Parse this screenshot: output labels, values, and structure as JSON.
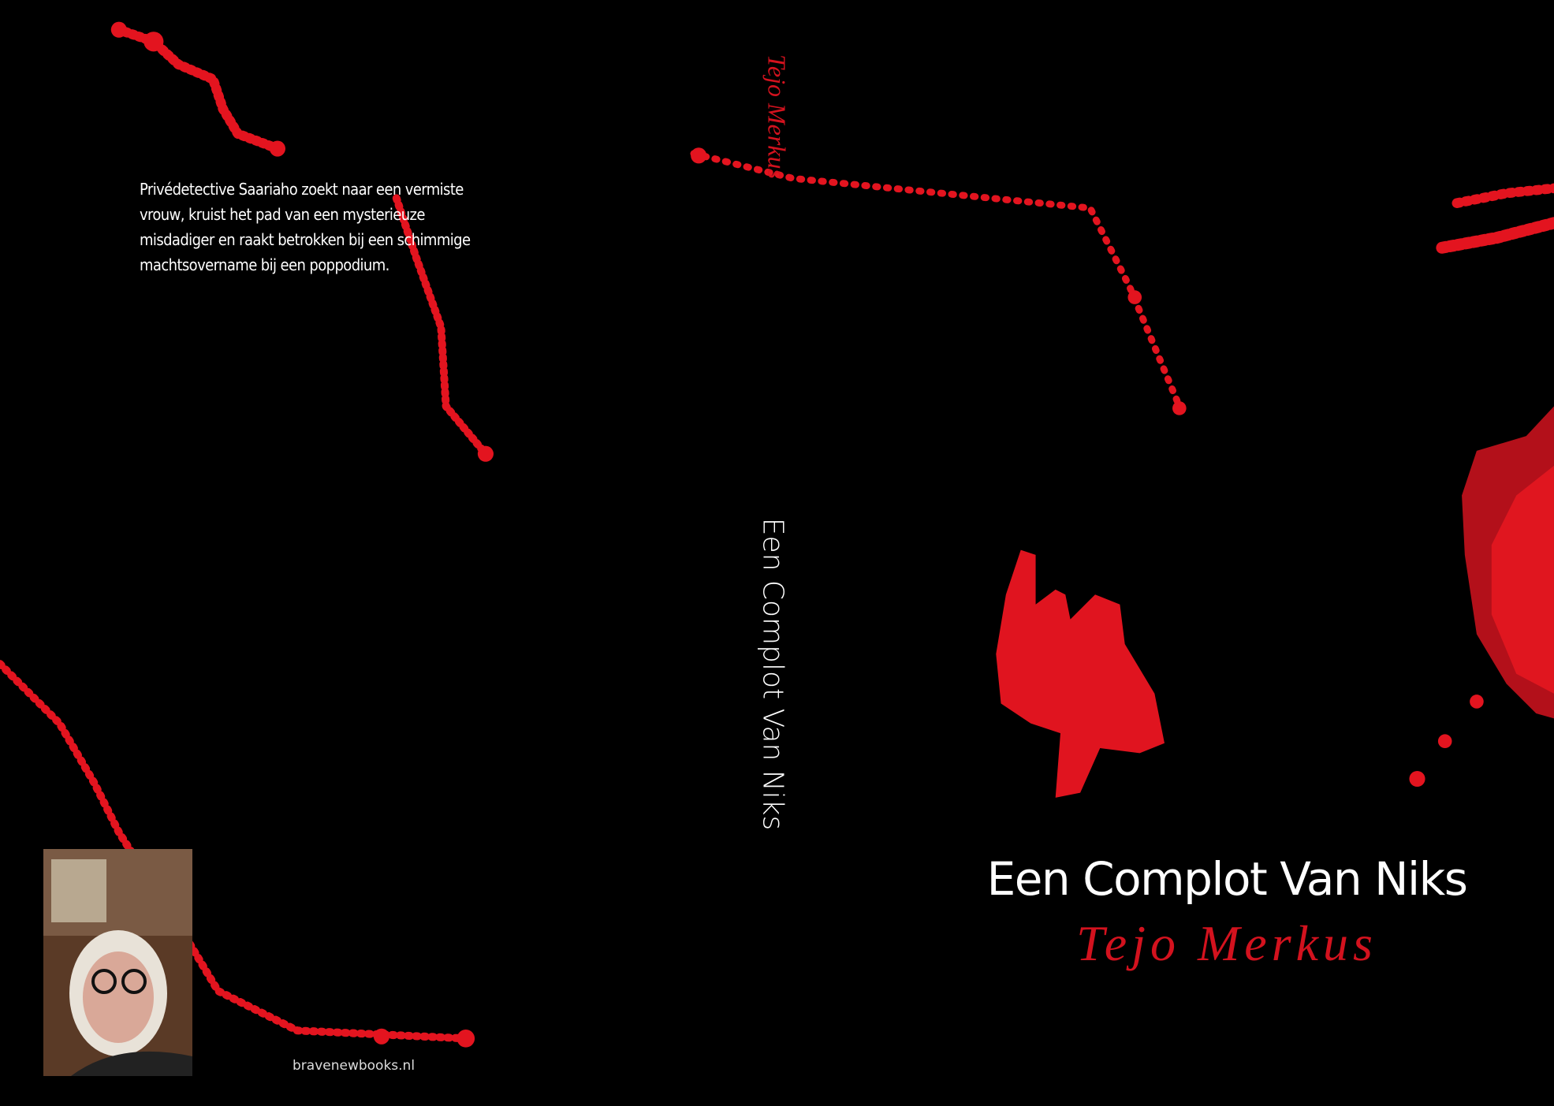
{
  "back_cover": {
    "blurb": "Privédetective Saariaho zoekt naar een vermiste vrouw, kruist het pad van een mysterieuze misdadiger en raakt betrokken bij een schimmige machtsovername bij een poppodium.",
    "website": "bravenewbooks.nl"
  },
  "spine": {
    "author": "Tejo Merkus",
    "title": "Een Complot Van Niks"
  },
  "front_cover": {
    "title": "Een Complot Van Niks",
    "author": "Tejo Merkus"
  }
}
